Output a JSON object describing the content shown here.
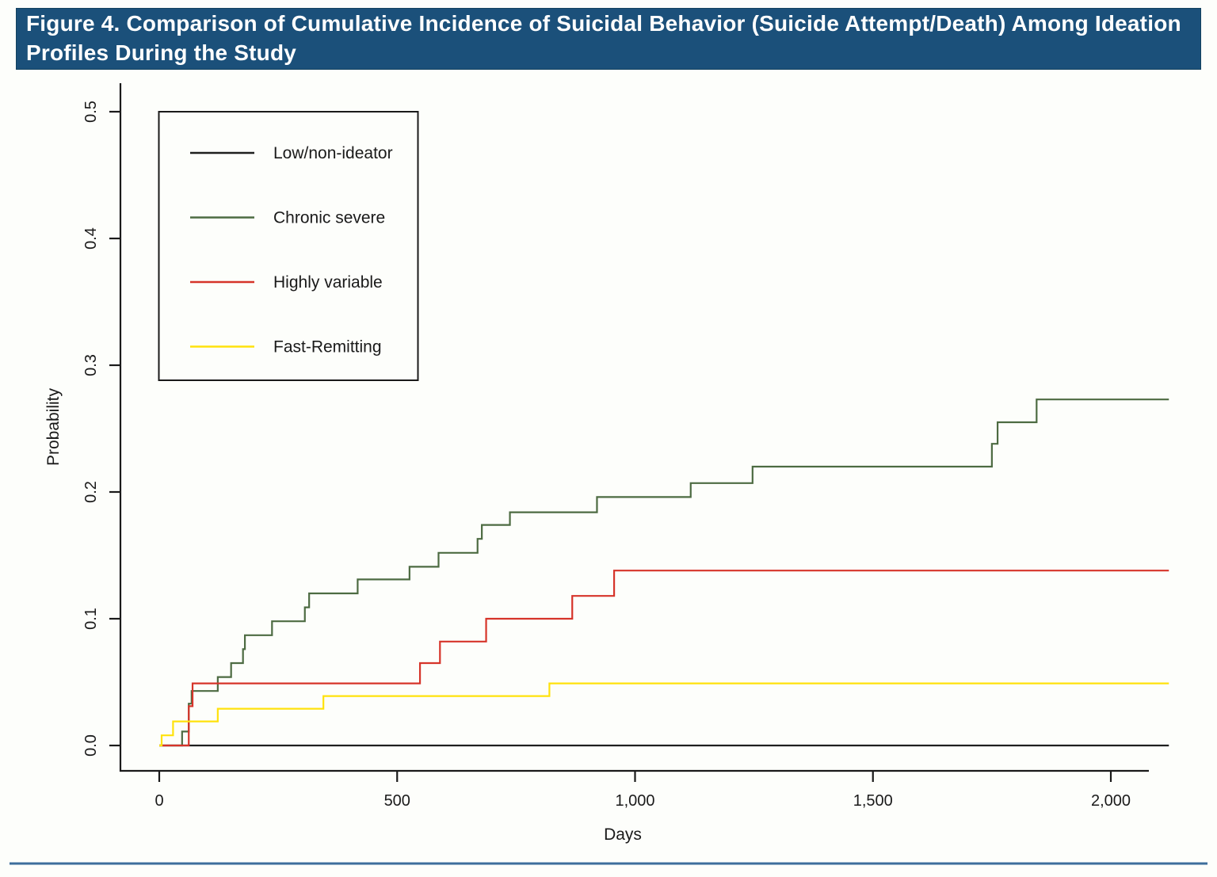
{
  "header": {
    "title": "Figure 4. Comparison of Cumulative Incidence of Suicidal Behavior (Suicide Attempt/Death) Among Ideation Profiles During the Study",
    "bar_color": "#1b507a"
  },
  "chart_data": {
    "type": "line",
    "subtype": "step-cumulative-incidence",
    "title": "Comparison of Cumulative Incidence of Suicidal Behavior (Suicide Attempt/Death) Among Ideation Profiles During the Study",
    "xlabel": "Days",
    "ylabel": "Probability",
    "xlim": [
      0,
      2122
    ],
    "ylim": [
      0,
      0.5
    ],
    "grid": false,
    "legend_position": "upper-left",
    "x_ticks": [
      {
        "v": 0,
        "label": "0"
      },
      {
        "v": 500,
        "label": "500"
      },
      {
        "v": 1000,
        "label": "1,000"
      },
      {
        "v": 1500,
        "label": "1,500"
      },
      {
        "v": 2000,
        "label": "2,000"
      }
    ],
    "y_ticks": [
      {
        "v": 0.0,
        "label": "0.0"
      },
      {
        "v": 0.1,
        "label": "0.1"
      },
      {
        "v": 0.2,
        "label": "0.2"
      },
      {
        "v": 0.3,
        "label": "0.3"
      },
      {
        "v": 0.4,
        "label": "0.4"
      },
      {
        "v": 0.5,
        "label": "0.5"
      }
    ],
    "series": [
      {
        "name": "Low/non-ideator",
        "color": "#1f1f1f",
        "steps": [],
        "final_probability": 0.0
      },
      {
        "name": "Chronic severe",
        "color": "#4d6b42",
        "steps": [
          [
            48,
            0.011
          ],
          [
            62,
            0.033
          ],
          [
            68,
            0.043
          ],
          [
            123,
            0.054
          ],
          [
            151,
            0.065
          ],
          [
            176,
            0.076
          ],
          [
            180,
            0.087
          ],
          [
            237,
            0.098
          ],
          [
            306,
            0.109
          ],
          [
            315,
            0.12
          ],
          [
            417,
            0.131
          ],
          [
            526,
            0.141
          ],
          [
            587,
            0.152
          ],
          [
            669,
            0.163
          ],
          [
            678,
            0.174
          ],
          [
            737,
            0.184
          ],
          [
            920,
            0.196
          ],
          [
            1117,
            0.207
          ],
          [
            1247,
            0.22
          ],
          [
            1750,
            0.238
          ],
          [
            1762,
            0.255
          ],
          [
            1844,
            0.273
          ]
        ],
        "final_probability": 0.273
      },
      {
        "name": "Highly variable",
        "color": "#d6342a",
        "steps": [
          [
            62,
            0.031
          ],
          [
            70,
            0.049
          ],
          [
            548,
            0.065
          ],
          [
            590,
            0.082
          ],
          [
            687,
            0.1
          ],
          [
            868,
            0.118
          ],
          [
            956,
            0.138
          ]
        ],
        "final_probability": 0.138
      },
      {
        "name": "Fast-Remitting",
        "color": "#ffe20c",
        "steps": [
          [
            5,
            0.008
          ],
          [
            29,
            0.019
          ],
          [
            123,
            0.029
          ],
          [
            345,
            0.039
          ],
          [
            820,
            0.049
          ]
        ],
        "final_probability": 0.049
      }
    ],
    "footer_rule_color": "#3d6e9c"
  }
}
